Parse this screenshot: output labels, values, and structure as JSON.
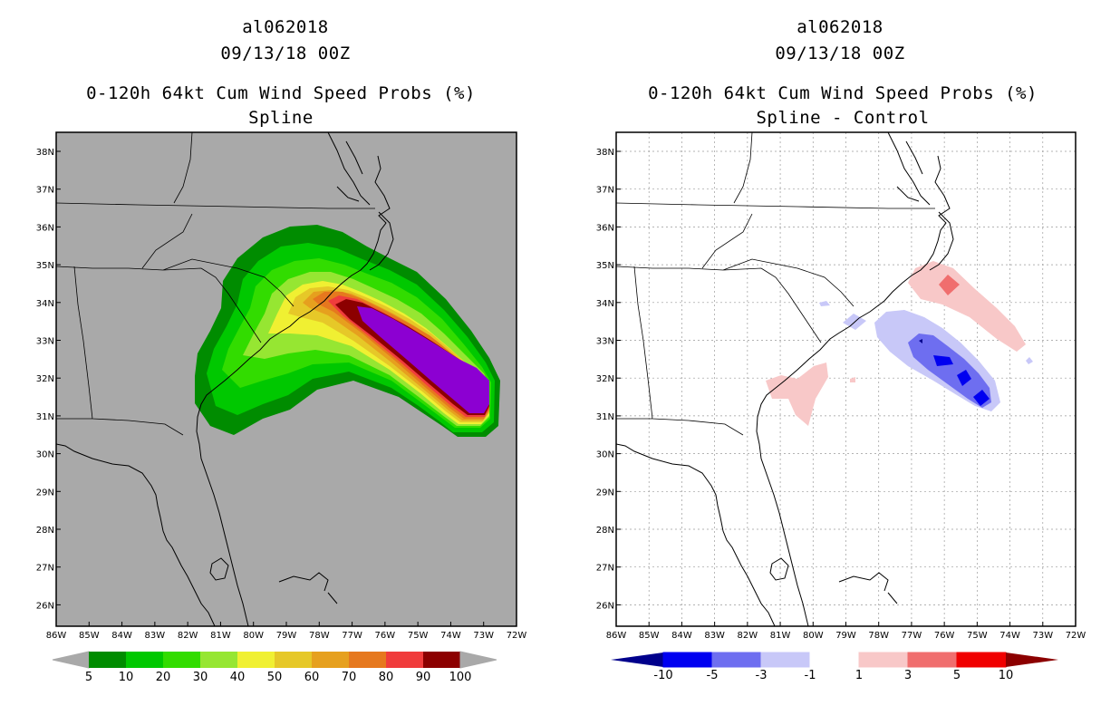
{
  "left_panel": {
    "storm_id": "al062018",
    "date": "09/13/18 00Z",
    "product": "0-120h 64kt Cum Wind Speed Probs (%)",
    "subtitle": "Spline",
    "colorbar": {
      "labels": [
        "5",
        "10",
        "20",
        "30",
        "40",
        "50",
        "60",
        "70",
        "80",
        "90",
        "100"
      ],
      "colors": [
        "#008c00",
        "#00c800",
        "#32dc00",
        "#96e632",
        "#f0f032",
        "#e6c828",
        "#e6a01e",
        "#e6781e",
        "#f03c3c",
        "#8c0000",
        "#8c00d2"
      ]
    },
    "contours": [
      {
        "level": "5+",
        "color": "#008c00"
      },
      {
        "level": "10+",
        "color": "#00c800"
      },
      {
        "level": "20+",
        "color": "#32dc00"
      },
      {
        "level": "30+",
        "color": "#96e632"
      },
      {
        "level": "40+",
        "color": "#f0f032"
      },
      {
        "level": "50+",
        "color": "#e6c828"
      },
      {
        "level": "60+",
        "color": "#e6a01e"
      },
      {
        "level": "70+",
        "color": "#e6781e"
      },
      {
        "level": "80+",
        "color": "#f03c3c"
      },
      {
        "level": "90+",
        "color": "#8c0000"
      },
      {
        "level": "100",
        "color": "#8c00d2"
      }
    ]
  },
  "right_panel": {
    "storm_id": "al062018",
    "date": "09/13/18 00Z",
    "product": "0-120h 64kt Cum Wind Speed Probs (%)",
    "subtitle": "Spline - Control",
    "colorbar": {
      "labels": [
        "-10",
        "-5",
        "-3",
        "-1",
        "1",
        "3",
        "5",
        "10"
      ],
      "colors": [
        "#00008c",
        "#0000f0",
        "#6e6ef0",
        "#c8c8f8",
        "#ffffff",
        "#f8c8c8",
        "#f06e6e",
        "#f00000",
        "#8c0000"
      ]
    }
  },
  "axes": {
    "lon_labels": [
      "86W",
      "85W",
      "84W",
      "83W",
      "82W",
      "81W",
      "80W",
      "79W",
      "78W",
      "77W",
      "76W",
      "75W",
      "74W",
      "73W",
      "72W"
    ],
    "lat_labels": [
      "38N",
      "37N",
      "36N",
      "35N",
      "34N",
      "33N",
      "32N",
      "31N",
      "30N",
      "29N",
      "28N",
      "27N",
      "26N"
    ]
  },
  "colors": {
    "land_background": "#a9a9a9",
    "diff_background": "#ffffff",
    "grid": "#9a9a9a"
  }
}
